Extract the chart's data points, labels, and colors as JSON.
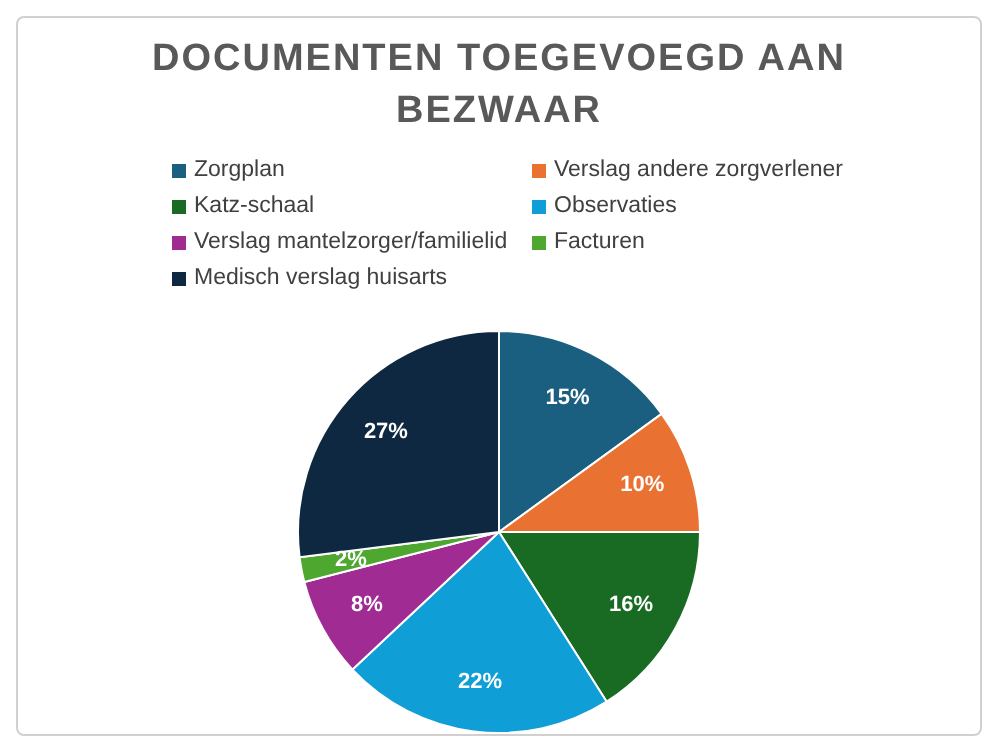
{
  "chart_data": {
    "type": "pie",
    "title": "DOCUMENTEN TOEGEVOEGD AAN BEZWAAR",
    "categories": [
      "Zorgplan",
      "Verslag andere zorgverlener",
      "Katz-schaal",
      "Observaties",
      "Verslag mantelzorger/familielid",
      "Facturen",
      "Medisch verslag huisarts"
    ],
    "values": [
      15,
      10,
      16,
      22,
      8,
      2,
      27
    ],
    "colors": [
      "#1a5e80",
      "#e97132",
      "#196b24",
      "#0f9ed5",
      "#a02b93",
      "#4ea72e",
      "#0e2841"
    ],
    "value_labels": [
      "15%",
      "10%",
      "16%",
      "22%",
      "8%",
      "2%",
      "27%"
    ],
    "legend": "top"
  }
}
